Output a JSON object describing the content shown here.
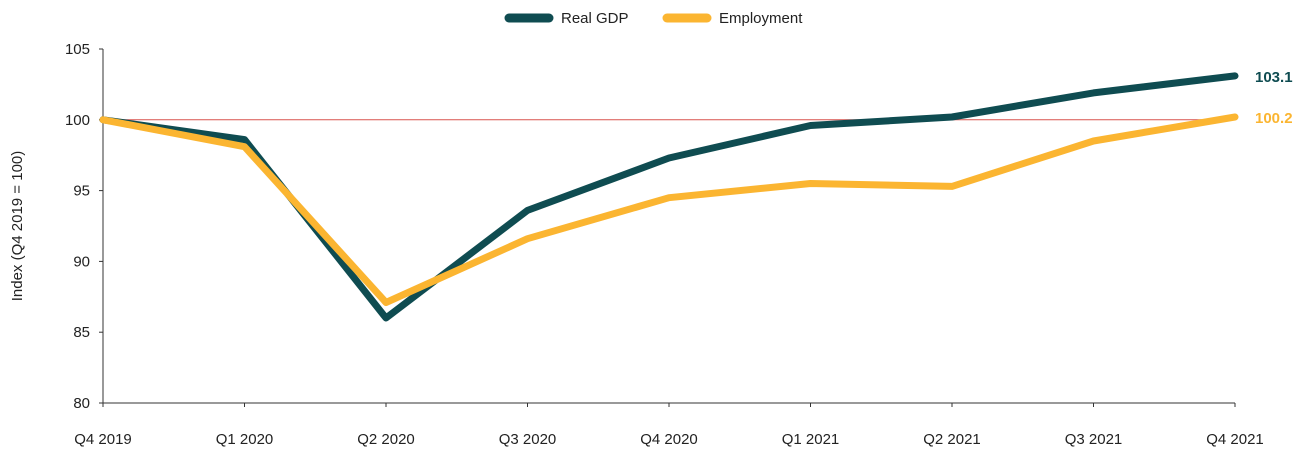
{
  "chart_data": {
    "type": "line",
    "title": "",
    "xlabel": "",
    "ylabel": "Index (Q4 2019 = 100)",
    "categories": [
      "Q4 2019",
      "Q1 2020",
      "Q2 2020",
      "Q3 2020",
      "Q4 2020",
      "Q1 2021",
      "Q2 2021",
      "Q3 2021",
      "Q4 2021"
    ],
    "ylim": [
      80,
      105
    ],
    "yticks": [
      "80",
      "85",
      "90",
      "95",
      "100",
      "105"
    ],
    "reference_line": 100,
    "reference_color": "#d9534f",
    "legend_position": "top-center",
    "grid": false,
    "series": [
      {
        "name": "Real GDP",
        "color": "#0f4c51",
        "values": [
          100.0,
          98.6,
          86.0,
          93.6,
          97.3,
          99.6,
          100.2,
          101.9,
          103.1
        ],
        "end_label": "103.1"
      },
      {
        "name": "Employment",
        "color": "#fbb531",
        "values": [
          100.0,
          98.1,
          87.1,
          91.6,
          94.5,
          95.5,
          95.3,
          98.5,
          100.2
        ],
        "end_label": "100.2"
      }
    ]
  }
}
